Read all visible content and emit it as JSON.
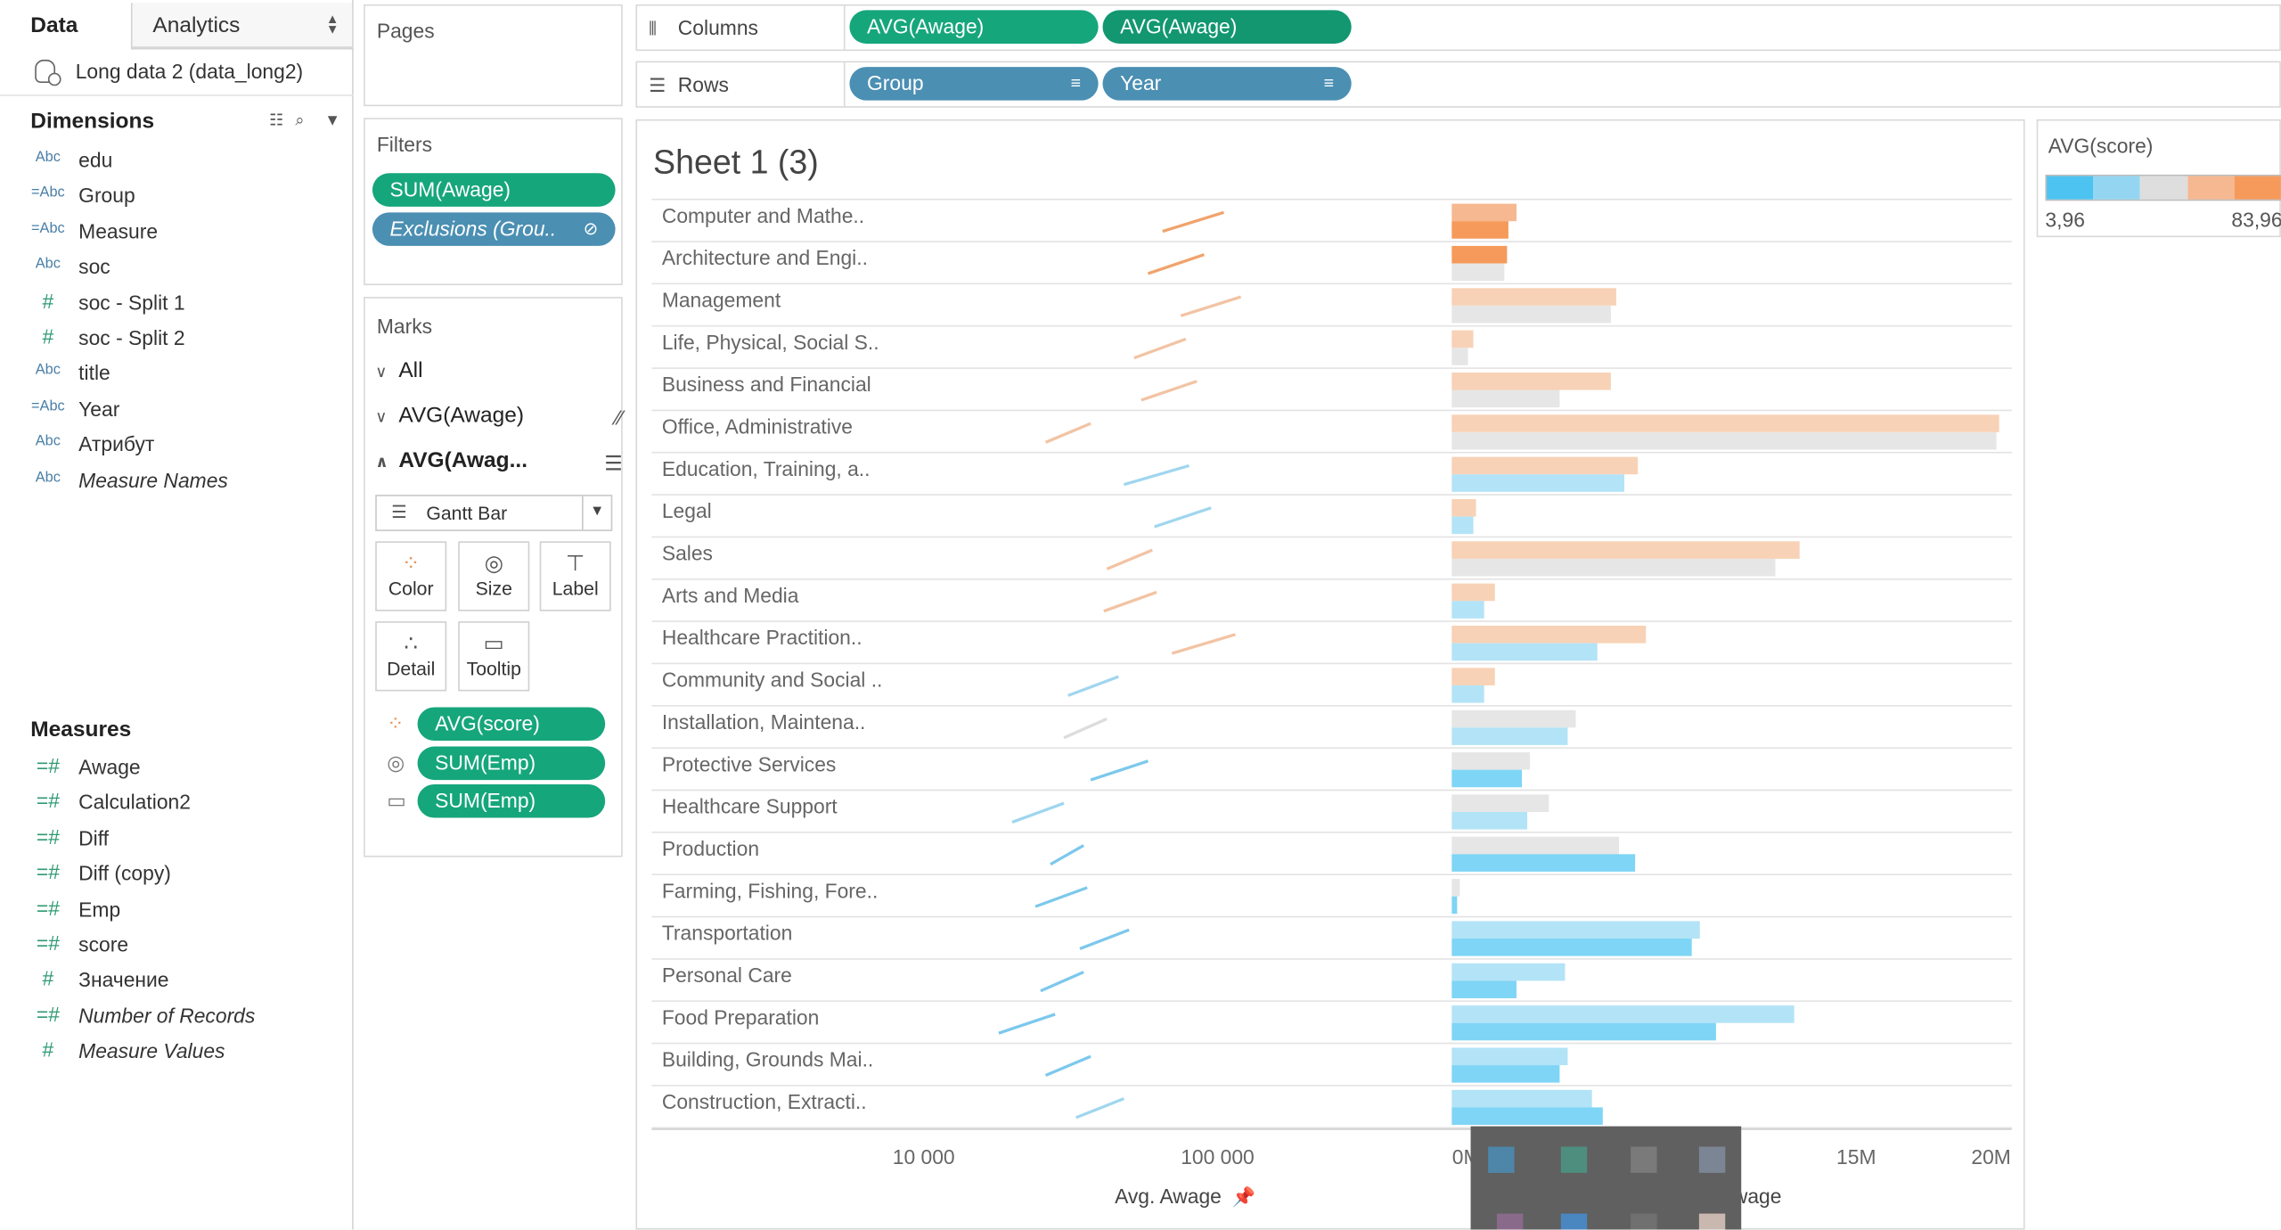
{
  "data_pane": {
    "tab_data": "Data",
    "tab_analytics": "Analytics",
    "datasource": "Long data 2 (data_long2)",
    "dimensions_label": "Dimensions",
    "measures_label": "Measures",
    "dimensions": [
      {
        "type": "Abc",
        "name": "edu",
        "italic": false
      },
      {
        "type": "=Abc",
        "name": "Group",
        "italic": false
      },
      {
        "type": "=Abc",
        "name": "Measure",
        "italic": false
      },
      {
        "type": "Abc",
        "name": "soc",
        "italic": false
      },
      {
        "type": "#",
        "name": "soc - Split 1",
        "italic": false
      },
      {
        "type": "#",
        "name": "soc - Split 2",
        "italic": false
      },
      {
        "type": "Abc",
        "name": "title",
        "italic": false
      },
      {
        "type": "=Abc",
        "name": "Year",
        "italic": false
      },
      {
        "type": "Abc",
        "name": "Атрибут",
        "italic": false
      },
      {
        "type": "Abc",
        "name": "Measure Names",
        "italic": true
      }
    ],
    "measures": [
      {
        "type": "=#",
        "name": "Awage",
        "italic": false
      },
      {
        "type": "=#",
        "name": "Calculation2",
        "italic": false
      },
      {
        "type": "=#",
        "name": "Diff",
        "italic": false
      },
      {
        "type": "=#",
        "name": "Diff (copy)",
        "italic": false
      },
      {
        "type": "=#",
        "name": "Emp",
        "italic": false
      },
      {
        "type": "=#",
        "name": "score",
        "italic": false
      },
      {
        "type": "#",
        "name": "Значение",
        "italic": false
      },
      {
        "type": "=#",
        "name": "Number of Records",
        "italic": true
      },
      {
        "type": "#",
        "name": "Measure Values",
        "italic": true
      }
    ]
  },
  "pages": {
    "label": "Pages"
  },
  "filters": {
    "label": "Filters",
    "pills": [
      "SUM(Awage)",
      "Exclusions (Grou.."
    ]
  },
  "marks": {
    "label": "Marks",
    "rows": [
      "All",
      "AVG(Awage)",
      "AVG(Awag..."
    ],
    "mark_type": "Gantt Bar",
    "buttons": [
      "Color",
      "Size",
      "Label",
      "Detail",
      "Tooltip"
    ],
    "pills": [
      "AVG(score)",
      "SUM(Emp)",
      "SUM(Emp)"
    ]
  },
  "columns_shelf": {
    "label": "Columns",
    "pills": [
      "AVG(Awage)",
      "AVG(Awage)"
    ]
  },
  "rows_shelf": {
    "label": "Rows",
    "pills": [
      "Group",
      "Year"
    ]
  },
  "sheet": {
    "title": "Sheet 1 (3)"
  },
  "legend": {
    "title": "AVG(score)",
    "min": "3,96",
    "max": "83,96",
    "colors": [
      "#4cc3f0",
      "#94d6f2",
      "#dedede",
      "#f6b890",
      "#f59a5a"
    ]
  },
  "chart_data": {
    "type": "bar",
    "categories": [
      "Computer and Mathe..",
      "Architecture and Engi..",
      "Management",
      "Life, Physical, Social S..",
      "Business and Financial",
      "Office, Administrative",
      "Education, Training, a..",
      "Legal",
      "Sales",
      "Arts and Media",
      "Healthcare Practition..",
      "Community and Social ..",
      "Installation, Maintena..",
      "Protective Services",
      "Healthcare Support",
      "Production",
      "Farming, Fishing, Fore..",
      "Transportation",
      "Personal Care",
      "Food Preparation",
      "Building, Grounds Mai..",
      "Construction, Extracti.."
    ],
    "left_axis": {
      "label": "Avg. Awage",
      "scale": "log",
      "ticks": [
        "10 000",
        "100 000"
      ],
      "tick_values": [
        10000,
        100000
      ]
    },
    "right_axis": {
      "label": "Avg. Awage",
      "ticks": [
        "0M",
        "15M",
        "20M"
      ],
      "tick_values": [
        0,
        15000000,
        20000000
      ],
      "range": [
        0,
        20500000
      ]
    },
    "slope_lines": [
      {
        "x1": 65000,
        "x2": 105000,
        "color": "#f0a36c"
      },
      {
        "x1": 58000,
        "x2": 90000,
        "color": "#f0a36c"
      },
      {
        "x1": 75000,
        "x2": 120000,
        "color": "#f2c3a3"
      },
      {
        "x1": 52000,
        "x2": 78000,
        "color": "#f2c3a3"
      },
      {
        "x1": 55000,
        "x2": 85000,
        "color": "#f2c3a3"
      },
      {
        "x1": 26000,
        "x2": 37000,
        "color": "#f2c3a3"
      },
      {
        "x1": 48000,
        "x2": 80000,
        "color": "#9fd6ee"
      },
      {
        "x1": 61000,
        "x2": 95000,
        "color": "#9fd6ee"
      },
      {
        "x1": 42000,
        "x2": 60000,
        "color": "#f2c3a3"
      },
      {
        "x1": 41000,
        "x2": 62000,
        "color": "#f2c3a3"
      },
      {
        "x1": 70000,
        "x2": 115000,
        "color": "#f2c3a3"
      },
      {
        "x1": 31000,
        "x2": 46000,
        "color": "#9fd6ee"
      },
      {
        "x1": 30000,
        "x2": 42000,
        "color": "#dcdcdc"
      },
      {
        "x1": 37000,
        "x2": 58000,
        "color": "#7cc8ec"
      },
      {
        "x1": 20000,
        "x2": 30000,
        "color": "#9fd6ee"
      },
      {
        "x1": 27000,
        "x2": 35000,
        "color": "#7cc8ec"
      },
      {
        "x1": 24000,
        "x2": 36000,
        "color": "#7cc8ec"
      },
      {
        "x1": 34000,
        "x2": 50000,
        "color": "#7cc8ec"
      },
      {
        "x1": 25000,
        "x2": 35000,
        "color": "#7cc8ec"
      },
      {
        "x1": 18000,
        "x2": 28000,
        "color": "#7cc8ec"
      },
      {
        "x1": 26000,
        "x2": 37000,
        "color": "#7cc8ec"
      },
      {
        "x1": 33000,
        "x2": 48000,
        "color": "#9fd6ee"
      }
    ],
    "bars": [
      {
        "top": 2400000,
        "top_color": "#f6b890",
        "bottom": 2100000,
        "bottom_color": "#f59a5a"
      },
      {
        "top": 2050000,
        "top_color": "#f59a5a",
        "bottom": 1950000,
        "bottom_color": "#e6e6e6"
      },
      {
        "top": 6100000,
        "top_color": "#f8d2b6",
        "bottom": 5900000,
        "bottom_color": "#e6e6e6"
      },
      {
        "top": 800000,
        "top_color": "#f8d2b6",
        "bottom": 600000,
        "bottom_color": "#e6e6e6"
      },
      {
        "top": 5900000,
        "top_color": "#f8d2b6",
        "bottom": 4000000,
        "bottom_color": "#e6e6e6"
      },
      {
        "top": 20300000,
        "top_color": "#f8d2b6",
        "bottom": 20200000,
        "bottom_color": "#e6e6e6"
      },
      {
        "top": 6900000,
        "top_color": "#f8d2b6",
        "bottom": 6400000,
        "bottom_color": "#b3e3f7"
      },
      {
        "top": 900000,
        "top_color": "#f8d2b6",
        "bottom": 800000,
        "bottom_color": "#b3e3f7"
      },
      {
        "top": 12900000,
        "top_color": "#f8d2b6",
        "bottom": 12000000,
        "bottom_color": "#e6e6e6"
      },
      {
        "top": 1600000,
        "top_color": "#f8d2b6",
        "bottom": 1200000,
        "bottom_color": "#b3e3f7"
      },
      {
        "top": 7200000,
        "top_color": "#f8d2b6",
        "bottom": 5400000,
        "bottom_color": "#b3e3f7"
      },
      {
        "top": 1600000,
        "top_color": "#f8d2b6",
        "bottom": 1200000,
        "bottom_color": "#b3e3f7"
      },
      {
        "top": 4600000,
        "top_color": "#e6e6e6",
        "bottom": 4300000,
        "bottom_color": "#b3e3f7"
      },
      {
        "top": 2900000,
        "top_color": "#e6e6e6",
        "bottom": 2600000,
        "bottom_color": "#7fd5f5"
      },
      {
        "top": 3600000,
        "top_color": "#e6e6e6",
        "bottom": 2800000,
        "bottom_color": "#b3e3f7"
      },
      {
        "top": 6200000,
        "top_color": "#e6e6e6",
        "bottom": 6800000,
        "bottom_color": "#7fd5f5"
      },
      {
        "top": 300000,
        "top_color": "#e6e6e6",
        "bottom": 200000,
        "bottom_color": "#7fd5f5"
      },
      {
        "top": 9200000,
        "top_color": "#b3e3f7",
        "bottom": 8900000,
        "bottom_color": "#7fd5f5"
      },
      {
        "top": 4200000,
        "top_color": "#b3e3f7",
        "bottom": 2400000,
        "bottom_color": "#7fd5f5"
      },
      {
        "top": 12700000,
        "top_color": "#b3e3f7",
        "bottom": 9800000,
        "bottom_color": "#7fd5f5"
      },
      {
        "top": 4300000,
        "top_color": "#b3e3f7",
        "bottom": 4000000,
        "bottom_color": "#7fd5f5"
      },
      {
        "top": 5200000,
        "top_color": "#b3e3f7",
        "bottom": 5600000,
        "bottom_color": "#7fd5f5"
      }
    ]
  }
}
